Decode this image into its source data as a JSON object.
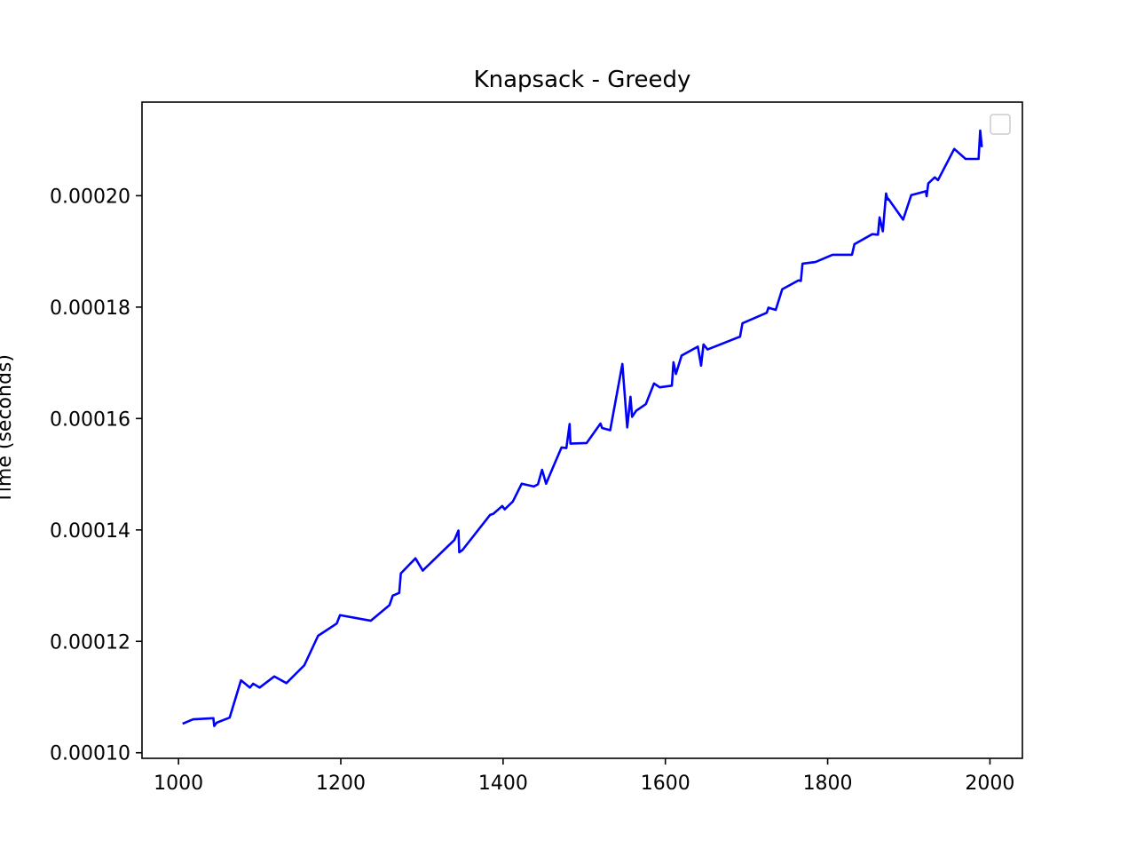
{
  "chart_data": {
    "type": "line",
    "title": "Knapsack - Greedy",
    "xlabel": "",
    "ylabel": "Time (seconds)",
    "xlim": [
      955,
      2040
    ],
    "ylim": [
      9.9e-05,
      0.0002168
    ],
    "x_ticks": [
      1000,
      1200,
      1400,
      1600,
      1800,
      2000
    ],
    "x_tick_labels": [
      "1000",
      "1200",
      "1400",
      "1600",
      "1800",
      "2000"
    ],
    "y_ticks": [
      0.0001,
      0.00012,
      0.00014,
      0.00016,
      0.00018,
      0.0002
    ],
    "y_tick_labels": [
      "0.00010",
      "0.00012",
      "0.00014",
      "0.00016",
      "0.00018",
      "0.00020"
    ],
    "grid": false,
    "legend": {
      "placement": "top-right",
      "entries": []
    },
    "series": [
      {
        "color": "#0000ff",
        "x": [
          1005,
          1018,
          1043,
          1044,
          1047,
          1063,
          1077,
          1088,
          1092,
          1100,
          1118,
          1133,
          1155,
          1172,
          1195,
          1199,
          1237,
          1260,
          1264,
          1272,
          1274,
          1292,
          1301,
          1340,
          1345,
          1346,
          1350,
          1384,
          1388,
          1399,
          1402,
          1412,
          1423,
          1438,
          1443,
          1448,
          1453,
          1462,
          1472,
          1478,
          1482,
          1483,
          1503,
          1520,
          1522,
          1532,
          1547,
          1553,
          1557,
          1559,
          1564,
          1576,
          1586,
          1593,
          1608,
          1610,
          1613,
          1620,
          1640,
          1644,
          1647,
          1652,
          1692,
          1695,
          1725,
          1727,
          1736,
          1744,
          1764,
          1767,
          1769,
          1785,
          1806,
          1830,
          1833,
          1855,
          1862,
          1864,
          1868,
          1872,
          1874,
          1875,
          1893,
          1903,
          1921,
          1922,
          1924,
          1932,
          1936,
          1956,
          1970,
          1986,
          1988,
          1990
        ],
        "y": [
          0.0001052,
          0.000106,
          0.0001062,
          0.0001048,
          0.0001054,
          0.0001063,
          0.000113,
          0.0001117,
          0.0001124,
          0.0001117,
          0.0001137,
          0.0001125,
          0.0001157,
          0.000121,
          0.0001232,
          0.0001247,
          0.0001237,
          0.0001265,
          0.0001282,
          0.0001287,
          0.0001322,
          0.0001349,
          0.0001327,
          0.0001382,
          0.0001399,
          0.000136,
          0.0001364,
          0.0001427,
          0.0001429,
          0.0001443,
          0.0001437,
          0.0001451,
          0.0001483,
          0.0001478,
          0.0001482,
          0.0001508,
          0.0001483,
          0.0001514,
          0.0001548,
          0.0001547,
          0.000159,
          0.0001555,
          0.0001556,
          0.0001591,
          0.0001583,
          0.0001579,
          0.0001698,
          0.0001584,
          0.0001639,
          0.0001603,
          0.0001614,
          0.0001626,
          0.0001663,
          0.0001656,
          0.0001659,
          0.0001701,
          0.000168,
          0.0001713,
          0.0001729,
          0.0001695,
          0.0001733,
          0.0001724,
          0.0001747,
          0.0001771,
          0.000179,
          0.0001799,
          0.0001795,
          0.0001832,
          0.0001848,
          0.0001847,
          0.0001878,
          0.0001881,
          0.0001894,
          0.0001894,
          0.0001913,
          0.0001931,
          0.000193,
          0.0001961,
          0.0001936,
          0.0002004,
          0.0001993,
          0.0001994,
          0.0001957,
          0.0002001,
          0.0002008,
          0.0001999,
          0.0002022,
          0.0002033,
          0.0002028,
          0.0002084,
          0.0002066,
          0.0002066,
          0.0002117,
          0.0002087
        ]
      }
    ]
  }
}
